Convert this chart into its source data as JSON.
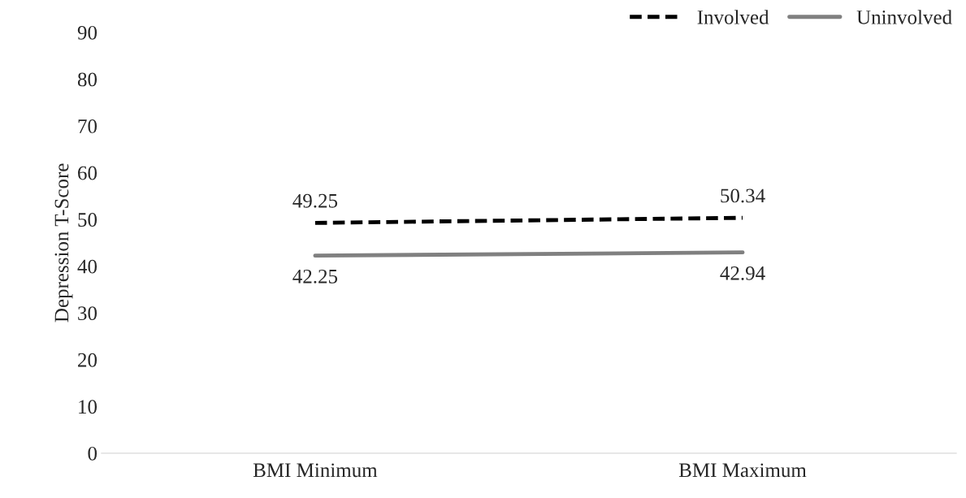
{
  "chart_data": {
    "type": "line",
    "ylabel": "Depression T-Score",
    "categories": [
      "BMI Minimum",
      "BMI Maximum"
    ],
    "series": [
      {
        "name": "Involved",
        "color": "#000000",
        "line_style": "dashed",
        "values": [
          49.25,
          50.34
        ]
      },
      {
        "name": "Uninvolved",
        "color": "#808080",
        "line_style": "solid",
        "values": [
          42.25,
          42.94
        ]
      }
    ],
    "ylim": [
      0,
      90
    ],
    "yticks": [
      0,
      10,
      20,
      30,
      40,
      50,
      60,
      70,
      80,
      90
    ],
    "grid": false,
    "legend": "top right",
    "data_labels": true
  }
}
